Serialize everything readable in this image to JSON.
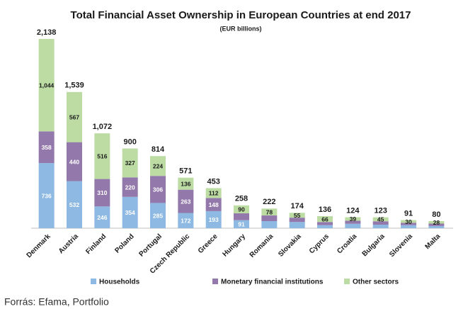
{
  "chart_data": {
    "type": "stacked_bar",
    "title": "Total Financial Asset Ownership in European Countries at end 2017",
    "subtitle": "(EUR billions)",
    "categories": [
      "Denmark",
      "Austria",
      "Finland",
      "Poland",
      "Portugal",
      "Czech Republic",
      "Greece",
      "Hungary",
      "Romania",
      "Slovakia",
      "Cyprus",
      "Croatia",
      "Bulgaria",
      "Slovenia",
      "Malta"
    ],
    "series": [
      {
        "name": "Households",
        "color": "#8db9e2",
        "label_color": "#ffffff",
        "values": [
          736,
          532,
          246,
          354,
          285,
          172,
          193,
          91,
          80,
          70,
          35,
          50,
          40,
          35,
          25
        ],
        "value_labels": [
          null,
          null,
          null,
          null,
          null,
          null,
          null,
          null,
          null,
          null,
          null,
          null,
          null,
          null,
          null
        ]
      },
      {
        "name": "Monetary financial institutions",
        "color": "#9378ab",
        "label_color": "#ffffff",
        "values": [
          358,
          440,
          310,
          220,
          306,
          263,
          148,
          77,
          64,
          49,
          35,
          35,
          38,
          26,
          27
        ],
        "value_labels": [
          null,
          null,
          null,
          null,
          null,
          null,
          null,
          null,
          null,
          null,
          null,
          null,
          null,
          null,
          null
        ]
      },
      {
        "name": "Other sectors",
        "color": "#bcdca4",
        "label_color": "#1a1a1a",
        "values": [
          1044,
          567,
          516,
          327,
          224,
          136,
          112,
          90,
          78,
          55,
          66,
          39,
          45,
          30,
          28
        ],
        "value_labels": [
          "1,044",
          null,
          null,
          null,
          null,
          null,
          null,
          null,
          null,
          null,
          null,
          null,
          null,
          null,
          null
        ]
      }
    ],
    "labeled": [
      [
        true,
        true,
        true,
        true,
        true,
        true,
        true,
        true,
        false,
        false,
        false,
        false,
        false,
        false,
        false
      ],
      [
        true,
        true,
        true,
        true,
        true,
        true,
        true,
        false,
        false,
        false,
        false,
        false,
        false,
        false,
        false
      ],
      [
        true,
        true,
        true,
        true,
        true,
        true,
        true,
        true,
        true,
        true,
        true,
        true,
        true,
        true,
        true
      ]
    ],
    "totals": [
      2138,
      1539,
      1072,
      900,
      814,
      571,
      453,
      258,
      222,
      174,
      136,
      124,
      123,
      91,
      80
    ],
    "total_labels": [
      "2,138",
      "1,539",
      "1,072",
      null,
      null,
      null,
      null,
      null,
      null,
      null,
      null,
      null,
      null,
      null,
      null
    ],
    "legend": "bottom",
    "source": "Forrás: Efama, Portfolio"
  }
}
